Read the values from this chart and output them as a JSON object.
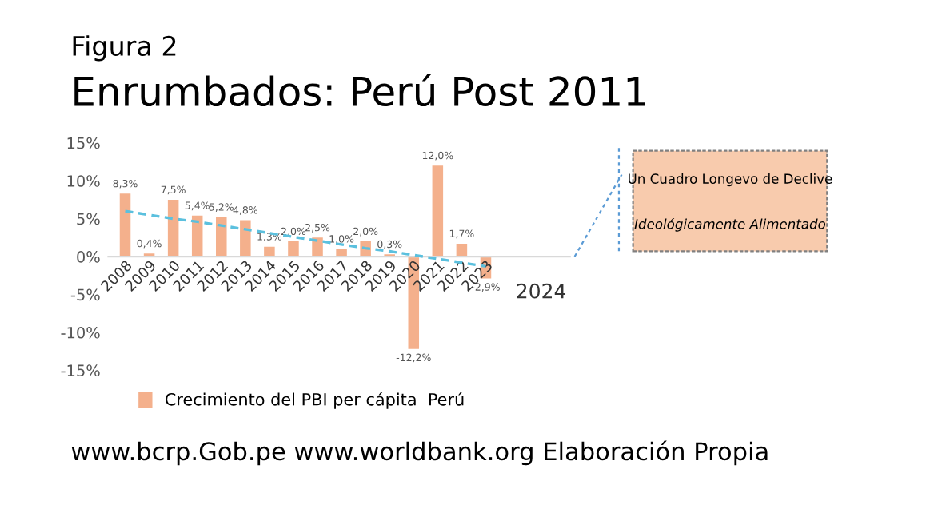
{
  "chart_data": {
    "type": "bar",
    "subtitle": "Figura 2",
    "title": "Enrumbados: Perú Post 2011",
    "categories": [
      "2008",
      "2009",
      "2010",
      "2011",
      "2012",
      "2013",
      "2014",
      "2015",
      "2016",
      "2017",
      "2018",
      "2019",
      "2020",
      "2021",
      "2022",
      "2023"
    ],
    "series": [
      {
        "name": "Crecimiento del PBI per cápita  Perú",
        "color": "#f4b08c",
        "values": [
          8.3,
          0.4,
          7.5,
          5.4,
          5.2,
          4.8,
          1.3,
          2.0,
          2.5,
          1.0,
          2.0,
          0.3,
          -12.2,
          12.0,
          1.7,
          -2.9
        ],
        "value_labels": [
          "8,3%",
          "0,4%",
          "7,5%",
          "5,4%",
          "5,2%",
          "4,8%",
          "1,3%",
          "2,0%",
          "2,5%",
          "1,0%",
          "2,0%",
          "0,3%",
          "-12,2%",
          "12,0%",
          "1,7%",
          "-2,9%"
        ]
      },
      {
        "type": "line",
        "color": "#5bc0de",
        "line_style": "dashed",
        "values": [
          6.0,
          5.5,
          5.0,
          4.6,
          4.1,
          3.6,
          3.1,
          2.6,
          2.1,
          1.6,
          1.1,
          0.7,
          0.2,
          -0.3,
          -0.8,
          -1.3
        ]
      }
    ],
    "ylim": [
      -15,
      15
    ],
    "yticks": [
      {
        "value": -15,
        "label": "-15%"
      },
      {
        "value": -10,
        "label": "-10%"
      },
      {
        "value": -5,
        "label": "-5%"
      },
      {
        "value": 0,
        "label": "0%"
      },
      {
        "value": 5,
        "label": "5%"
      },
      {
        "value": 10,
        "label": "10%"
      },
      {
        "value": 15,
        "label": "15%"
      }
    ],
    "grid": false,
    "legend": "bottom",
    "annotations": [
      "Un Cuadro Longevo de Declive",
      "Ideológicamente Alimentado",
      "2024",
      "www.bcrp.Gob.pe www.worldbank.org Elaboración Propia"
    ]
  }
}
